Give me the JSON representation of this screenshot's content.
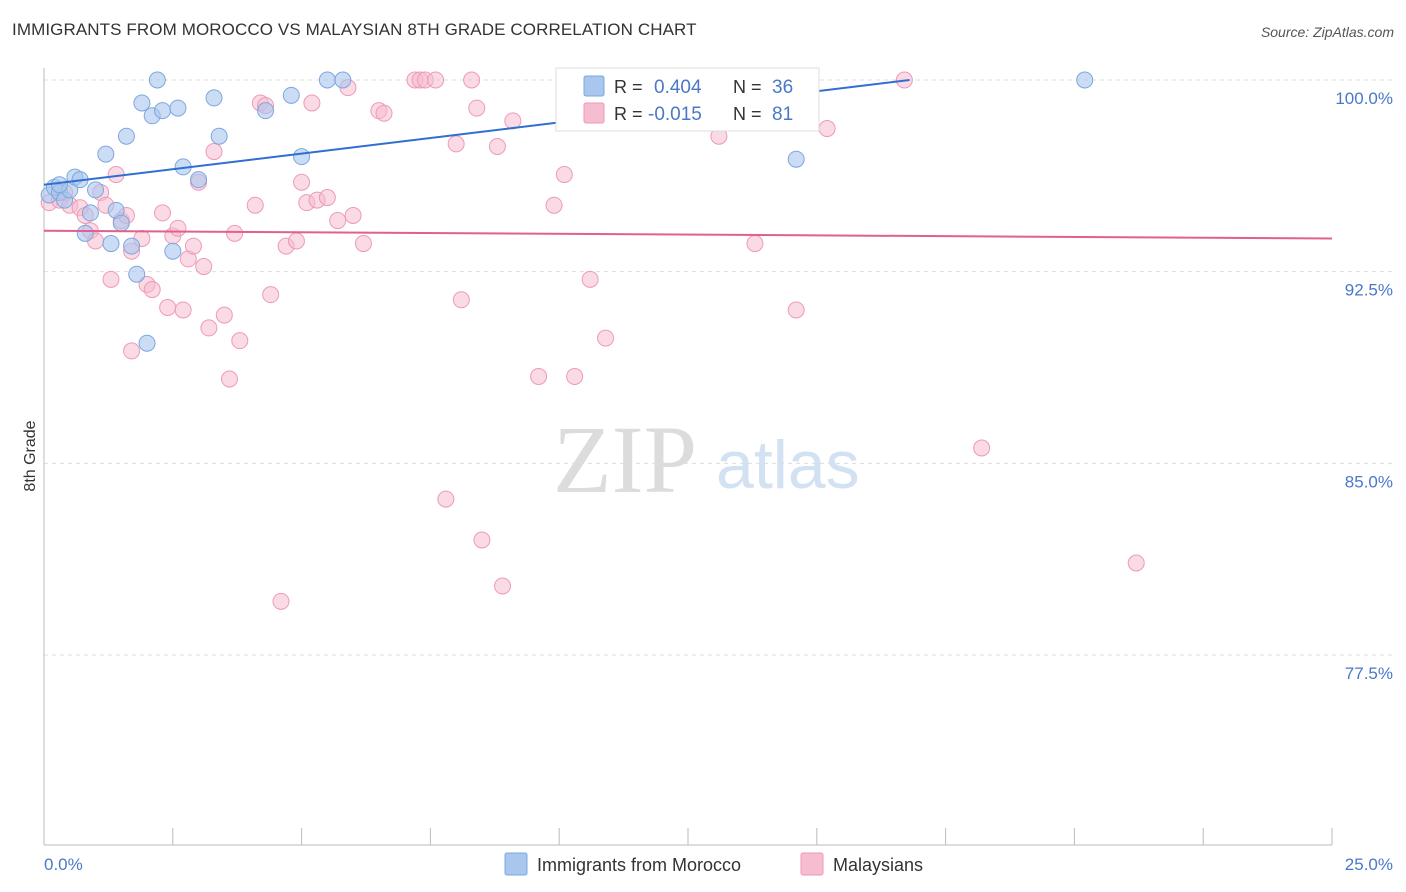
{
  "title": "IMMIGRANTS FROM MOROCCO VS MALAYSIAN 8TH GRADE CORRELATION CHART",
  "source": "Source: ZipAtlas.com",
  "watermark": {
    "part1": "ZIP",
    "part2": "atlas"
  },
  "colors": {
    "blue_fill": "#a9c6ee",
    "blue_stroke": "#7fa6de",
    "blue_line": "#2f6fd0",
    "pink_fill": "#f6bcd0",
    "pink_stroke": "#ee9ab8",
    "pink_line": "#e0608e",
    "grid": "#dddddd",
    "axis_label": "#4a78c8"
  },
  "legend": {
    "rows": [
      {
        "r_label": "R =",
        "r_value": "0.404",
        "n_label": "N =",
        "n_value": "36"
      },
      {
        "r_label": "R =",
        "r_value": "-0.015",
        "n_label": "N =",
        "n_value": "81"
      }
    ]
  },
  "bottom_legend": [
    "Immigrants from Morocco",
    "Malaysians"
  ],
  "chart_data": {
    "type": "scatter",
    "title": "IMMIGRANTS FROM MOROCCO VS MALAYSIAN 8TH GRADE CORRELATION CHART",
    "xlabel": "",
    "ylabel": "8th Grade",
    "xlim": [
      0,
      25
    ],
    "ylim": [
      70,
      100.5
    ],
    "x_tick_labels": [
      "0.0%",
      "25.0%"
    ],
    "y_ticks": [
      77.5,
      85.0,
      92.5,
      100.0
    ],
    "y_tick_labels": [
      "77.5%",
      "85.0%",
      "92.5%",
      "100.0%"
    ],
    "grid": true,
    "series": [
      {
        "name": "Immigrants from Morocco",
        "R": 0.404,
        "N": 36,
        "trend": {
          "x": [
            0,
            16.8
          ],
          "y": [
            95.9,
            100.0
          ]
        },
        "points": [
          [
            0.1,
            95.5
          ],
          [
            0.2,
            95.8
          ],
          [
            0.3,
            95.6
          ],
          [
            0.4,
            95.3
          ],
          [
            0.5,
            95.7
          ],
          [
            0.6,
            96.2
          ],
          [
            0.7,
            96.1
          ],
          [
            0.8,
            94.0
          ],
          [
            0.9,
            94.8
          ],
          [
            1.0,
            95.7
          ],
          [
            1.2,
            97.1
          ],
          [
            1.3,
            93.6
          ],
          [
            1.4,
            94.9
          ],
          [
            1.5,
            94.4
          ],
          [
            1.6,
            97.8
          ],
          [
            1.7,
            93.5
          ],
          [
            1.8,
            92.4
          ],
          [
            1.9,
            99.1
          ],
          [
            2.0,
            89.7
          ],
          [
            2.1,
            98.6
          ],
          [
            2.2,
            100.0
          ],
          [
            2.3,
            98.8
          ],
          [
            2.5,
            93.3
          ],
          [
            2.6,
            98.9
          ],
          [
            2.7,
            96.6
          ],
          [
            3.0,
            96.1
          ],
          [
            3.3,
            99.3
          ],
          [
            3.4,
            97.8
          ],
          [
            4.3,
            98.8
          ],
          [
            4.8,
            99.4
          ],
          [
            5.0,
            97.0
          ],
          [
            5.5,
            100.0
          ],
          [
            5.8,
            100.0
          ],
          [
            14.6,
            96.9
          ],
          [
            20.2,
            100.0
          ],
          [
            0.3,
            95.9
          ]
        ]
      },
      {
        "name": "Malaysians",
        "R": -0.015,
        "N": 81,
        "trend": {
          "x": [
            0,
            25
          ],
          "y": [
            94.1,
            93.8
          ]
        },
        "points": [
          [
            0.1,
            95.2
          ],
          [
            0.3,
            95.3
          ],
          [
            0.4,
            95.6
          ],
          [
            0.5,
            95.1
          ],
          [
            0.7,
            95.0
          ],
          [
            0.8,
            94.7
          ],
          [
            0.9,
            94.1
          ],
          [
            1.0,
            93.7
          ],
          [
            1.1,
            95.6
          ],
          [
            1.2,
            95.1
          ],
          [
            1.3,
            92.2
          ],
          [
            1.4,
            96.3
          ],
          [
            1.5,
            94.5
          ],
          [
            1.6,
            94.7
          ],
          [
            1.7,
            93.3
          ],
          [
            1.7,
            89.4
          ],
          [
            1.9,
            93.8
          ],
          [
            2.0,
            92.0
          ],
          [
            2.1,
            91.8
          ],
          [
            2.3,
            94.8
          ],
          [
            2.4,
            91.1
          ],
          [
            2.5,
            93.9
          ],
          [
            2.6,
            94.2
          ],
          [
            2.7,
            91.0
          ],
          [
            2.8,
            93.0
          ],
          [
            2.9,
            93.5
          ],
          [
            3.0,
            96.0
          ],
          [
            3.1,
            92.7
          ],
          [
            3.2,
            90.3
          ],
          [
            3.3,
            97.2
          ],
          [
            3.5,
            90.8
          ],
          [
            3.6,
            88.3
          ],
          [
            3.7,
            94.0
          ],
          [
            3.8,
            89.8
          ],
          [
            4.1,
            95.1
          ],
          [
            4.2,
            99.1
          ],
          [
            4.3,
            99.0
          ],
          [
            4.4,
            91.6
          ],
          [
            4.6,
            79.6
          ],
          [
            4.7,
            93.5
          ],
          [
            4.9,
            93.7
          ],
          [
            5.0,
            96.0
          ],
          [
            5.1,
            95.2
          ],
          [
            5.2,
            99.1
          ],
          [
            5.3,
            95.3
          ],
          [
            5.5,
            95.4
          ],
          [
            5.7,
            94.5
          ],
          [
            5.9,
            99.7
          ],
          [
            6.0,
            94.7
          ],
          [
            6.2,
            93.6
          ],
          [
            6.5,
            98.8
          ],
          [
            6.6,
            98.7
          ],
          [
            7.2,
            100.0
          ],
          [
            7.3,
            100.0
          ],
          [
            7.4,
            100.0
          ],
          [
            7.6,
            100.0
          ],
          [
            7.8,
            83.6
          ],
          [
            8.0,
            97.5
          ],
          [
            8.1,
            91.4
          ],
          [
            8.3,
            100.0
          ],
          [
            8.4,
            98.9
          ],
          [
            8.5,
            82.0
          ],
          [
            8.8,
            97.4
          ],
          [
            8.9,
            80.2
          ],
          [
            9.1,
            98.4
          ],
          [
            9.6,
            88.4
          ],
          [
            9.9,
            95.1
          ],
          [
            10.1,
            96.3
          ],
          [
            10.3,
            88.4
          ],
          [
            10.6,
            92.2
          ],
          [
            10.9,
            89.9
          ],
          [
            11.5,
            100.0
          ],
          [
            13.1,
            97.8
          ],
          [
            13.8,
            93.6
          ],
          [
            14.1,
            99.8
          ],
          [
            14.3,
            100.0
          ],
          [
            14.6,
            91.0
          ],
          [
            15.2,
            98.1
          ],
          [
            16.7,
            100.0
          ],
          [
            18.2,
            85.6
          ],
          [
            21.2,
            81.1
          ]
        ]
      }
    ]
  }
}
